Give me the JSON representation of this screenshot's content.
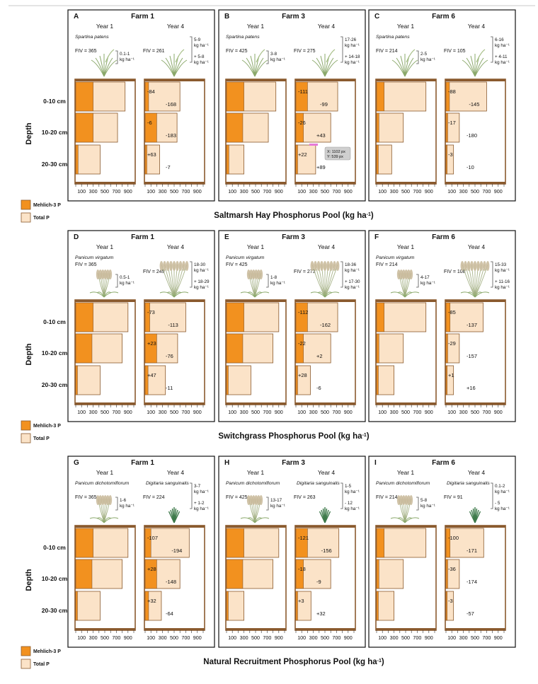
{
  "colors": {
    "mehlich": "#f2911f",
    "total": "#fbe3c8",
    "frame": "#8a5a2e",
    "text": "#111111"
  },
  "legend": {
    "mehlich_label": "Mehlich-3 P",
    "total_label": "Total P"
  },
  "axis": {
    "depth_label": "Depth",
    "depths": [
      "0-10 cm",
      "10-20 cm",
      "20-30 cm"
    ],
    "ticks": [
      "100",
      "300",
      "500",
      "700",
      "900"
    ]
  },
  "cursor_tooltip": {
    "line1": "X: 1102 px",
    "line2": "Y: 539 px"
  },
  "chart_data": {
    "type": "bar",
    "note": "Horizontal stacked bars: Mehlich-3 P nested inside Total P, per depth, kg ha-1",
    "x_range": [
      0,
      1000
    ],
    "sections": [
      {
        "title": "Saltmarsh Hay Phosphorus Pool (kg ha",
        "title_sup": "-1",
        "title_tail": ")",
        "panels": [
          {
            "letter": "A",
            "farm": "Farm 1",
            "year1_label": "Year 1",
            "year4_label": "Year 4",
            "species1": "Spartina patens",
            "species2": "",
            "fiv1": "FIV = 365",
            "fiv2": "FIV = 261",
            "plant1": "grass",
            "plant2": "grass",
            "yield1": [
              "0.1-1",
              "kg ha⁻¹"
            ],
            "yield2": [
              "5-9",
              "kg ha⁻¹",
              "",
              "+ 5-8",
              "kg ha⁻¹"
            ],
            "y1": {
              "mehlich": [
                300,
                300,
                40
              ],
              "total": [
                850,
                720,
                420
              ]
            },
            "y4": {
              "mehlich": [
                60,
                200,
                30
              ],
              "total": [
                600,
                550,
                250
              ]
            },
            "labels": [
              [
                "-84",
                "-168"
              ],
              [
                "-6",
                "-183"
              ],
              [
                "+63",
                "-7"
              ]
            ]
          },
          {
            "letter": "B",
            "farm": "Farm 3",
            "year1_label": "Year 1",
            "year4_label": "Year 4",
            "species1": "Spartina patens",
            "species2": "",
            "fiv1": "FIV = 425",
            "fiv2": "FIV = 275",
            "plant1": "grass",
            "plant2": "grass",
            "yield1": [
              "3-8",
              "kg ha⁻¹"
            ],
            "yield2": [
              "17-26",
              "kg ha⁻¹",
              "",
              "+ 14-18",
              "kg ha⁻¹"
            ],
            "y1": {
              "mehlich": [
                300,
                280,
                40
              ],
              "total": [
                850,
                720,
                300
              ]
            },
            "y4": {
              "mehlich": [
                200,
                130,
                30
              ],
              "total": [
                720,
                600,
                340
              ]
            },
            "labels": [
              [
                "-111",
                "-99"
              ],
              [
                "-26",
                "+43"
              ],
              [
                "+22",
                "+89"
              ]
            ]
          },
          {
            "letter": "C",
            "farm": "Farm 6",
            "year1_label": "Year 1",
            "year4_label": "Year 4",
            "species1": "Spartina patens",
            "species2": "",
            "fiv1": "FIV = 214",
            "fiv2": "FIV = 105",
            "plant1": "grass",
            "plant2": "grass",
            "yield1": [
              "2-5",
              "kg ha⁻¹"
            ],
            "yield2": [
              "6-16",
              "kg ha⁻¹",
              "",
              "+ 4-11",
              "kg ha⁻¹"
            ],
            "y1": {
              "mehlich": [
                130,
                40,
                30
              ],
              "total": [
                850,
                460,
                260
              ]
            },
            "y4": {
              "mehlich": [
                60,
                30,
                20
              ],
              "total": [
                700,
                230,
                130
              ]
            },
            "labels": [
              [
                "-88",
                "-145"
              ],
              [
                "-17",
                "-180"
              ],
              [
                "-3",
                "-10"
              ]
            ]
          }
        ]
      },
      {
        "title": "Switchgrass Phosphorus Pool (kg ha",
        "title_sup": "-1",
        "title_tail": ")",
        "panels": [
          {
            "letter": "D",
            "farm": "Farm 1",
            "year1_label": "Year 1",
            "year4_label": "Year 4",
            "species1": "Panicum virgatum",
            "species2": "",
            "fiv1": "FIV = 365",
            "fiv2": "FIV = 249",
            "plant1": "switch",
            "plant2": "switchbig",
            "yield1": [
              "0.5-1",
              "kg ha⁻¹"
            ],
            "yield2": [
              "18-30",
              "kg ha⁻¹",
              "",
              "+ 18-29",
              "kg ha⁻¹"
            ],
            "y1": {
              "mehlich": [
                300,
                280,
                30
              ],
              "total": [
                900,
                800,
                420
              ]
            },
            "y4": {
              "mehlich": [
                80,
                200,
                50
              ],
              "total": [
                700,
                560,
                350
              ]
            },
            "labels": [
              [
                "-73",
                "-113"
              ],
              [
                "+23",
                "-76"
              ],
              [
                "+47",
                "-11"
              ]
            ]
          },
          {
            "letter": "E",
            "farm": "Farm 3",
            "year1_label": "Year 1",
            "year4_label": "Year 4",
            "species1": "Panicum virgatum",
            "species2": "",
            "fiv1": "FIV = 425",
            "fiv2": "FIV = 273",
            "plant1": "switch",
            "plant2": "switchbig",
            "yield1": [
              "1-8",
              "kg ha⁻¹"
            ],
            "yield2": [
              "18-36",
              "kg ha⁻¹",
              "",
              "+ 17-30",
              "kg ha⁻¹"
            ],
            "y1": {
              "mehlich": [
                300,
                280,
                30
              ],
              "total": [
                900,
                800,
                420
              ]
            },
            "y4": {
              "mehlich": [
                200,
                130,
                30
              ],
              "total": [
                720,
                600,
                250
              ]
            },
            "labels": [
              [
                "-112",
                "-162"
              ],
              [
                "-22",
                "+2"
              ],
              [
                "+28",
                "-6"
              ]
            ]
          },
          {
            "letter": "F",
            "farm": "Farm 6",
            "year1_label": "Year 1",
            "year4_label": "Year 4",
            "species1": "Panicum virgatum",
            "species2": "",
            "fiv1": "FIV = 214",
            "fiv2": "FIV = 108",
            "plant1": "switch",
            "plant2": "switchbig",
            "yield1": [
              "4-17",
              "kg ha⁻¹"
            ],
            "yield2": [
              "15-33",
              "kg ha⁻¹",
              "",
              "+ 11-16",
              "kg ha⁻¹"
            ],
            "y1": {
              "mehlich": [
                130,
                40,
                30
              ],
              "total": [
                850,
                460,
                300
              ]
            },
            "y4": {
              "mehlich": [
                70,
                30,
                20
              ],
              "total": [
                640,
                230,
                130
              ]
            },
            "labels": [
              [
                "-85",
                "-137"
              ],
              [
                "-29",
                "-157"
              ],
              [
                "+1",
                "+16"
              ]
            ]
          }
        ]
      },
      {
        "title": "Natural Recruitment Phosphorus Pool (kg ha",
        "title_sup": "-1",
        "title_tail": ")",
        "panels": [
          {
            "letter": "G",
            "farm": "Farm 1",
            "year1_label": "Year 1",
            "year4_label": "Year 4",
            "species1": "Panicum dichotomiflorum",
            "species2": "Digitaria sanguinalis",
            "fiv1": "FIV = 365",
            "fiv2": "FIV = 224",
            "plant1": "switch",
            "plant2": "tuft",
            "yield1": [
              "1-6",
              "kg ha⁻¹"
            ],
            "yield2": [
              "3-7",
              "kg ha⁻¹",
              "",
              "+ 1-2",
              "kg ha⁻¹"
            ],
            "y1": {
              "mehlich": [
                300,
                280,
                30
              ],
              "total": [
                900,
                800,
                420
              ]
            },
            "y4": {
              "mehlich": [
                100,
                200,
                60
              ],
              "total": [
                760,
                600,
                280
              ]
            },
            "labels": [
              [
                "-107",
                "-194"
              ],
              [
                "+28",
                "-148"
              ],
              [
                "+32",
                "-64"
              ]
            ]
          },
          {
            "letter": "H",
            "farm": "Farm 3",
            "year1_label": "Year 1",
            "year4_label": "Year 4",
            "species1": "Panicum dichotomiflorum",
            "species2": "Digitaria sanguinalis",
            "fiv1": "FIV = 425",
            "fiv2": "FIV = 263",
            "plant1": "switch",
            "plant2": "tuft",
            "yield1": [
              "13-17",
              "kg ha⁻¹"
            ],
            "yield2": [
              "1-5",
              "kg ha⁻¹",
              "",
              "- 12",
              "kg ha⁻¹"
            ],
            "y1": {
              "mehlich": [
                300,
                280,
                30
              ],
              "total": [
                900,
                800,
                300
              ]
            },
            "y4": {
              "mehlich": [
                200,
                130,
                30
              ],
              "total": [
                740,
                600,
                260
              ]
            },
            "labels": [
              [
                "-121",
                "-156"
              ],
              [
                "-18",
                "-9"
              ],
              [
                "+3",
                "+32"
              ]
            ]
          },
          {
            "letter": "I",
            "farm": "Farm 6",
            "year1_label": "Year 1",
            "year4_label": "Year 4",
            "species1": "Panicum dichotomiflorum",
            "species2": "Digitaria sanguinalis",
            "fiv1": "FIV = 214",
            "fiv2": "FIV = 91",
            "plant1": "switch",
            "plant2": "tuft",
            "yield1": [
              "5-8",
              "kg ha⁻¹"
            ],
            "yield2": [
              "0.1-2",
              "kg ha⁻¹",
              "",
              "- 5",
              "kg ha⁻¹"
            ],
            "y1": {
              "mehlich": [
                130,
                40,
                30
              ],
              "total": [
                850,
                460,
                300
              ]
            },
            "y4": {
              "mehlich": [
                70,
                30,
                20
              ],
              "total": [
                650,
                230,
                130
              ]
            },
            "labels": [
              [
                "-100",
                "-171"
              ],
              [
                "-36",
                "-174"
              ],
              [
                "-3",
                "-57"
              ]
            ]
          }
        ]
      }
    ]
  }
}
